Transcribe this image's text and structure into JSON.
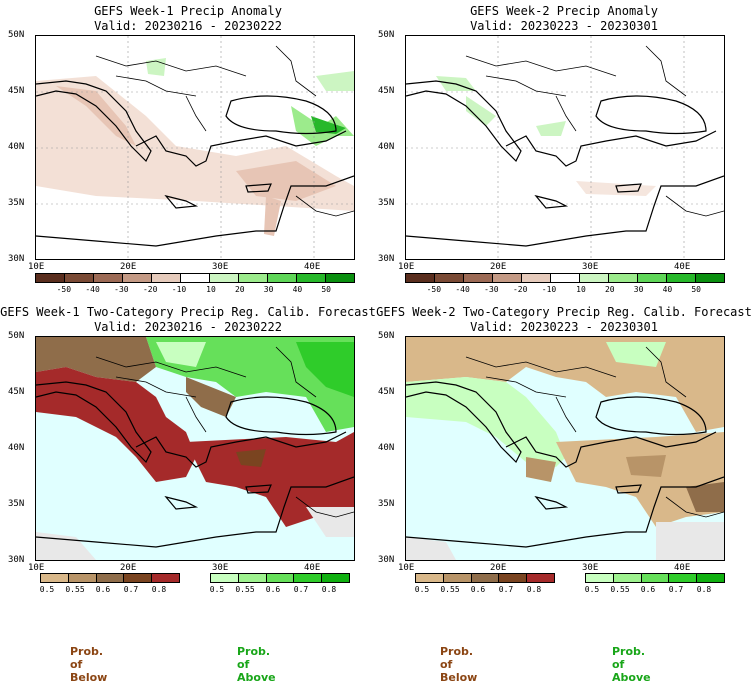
{
  "panels": [
    {
      "title_line1": "GEFS Week-1 Precip Anomaly",
      "title_line2": "Valid: 20230216 - 20230222"
    },
    {
      "title_line1": "GEFS Week-2 Precip Anomaly",
      "title_line2": "Valid: 20230223 - 20230301"
    },
    {
      "title_line1": "GEFS Week-1 Two-Category Precip Reg. Calib. Forecast",
      "title_line2": "Valid: 20230216 - 20230222"
    },
    {
      "title_line1": "GEFS Week-2 Two-Category Precip Reg. Calib. Forecast",
      "title_line2": "Valid: 20230223 - 20230301"
    }
  ],
  "lat_labels": [
    "50N",
    "45N",
    "40N",
    "35N",
    "30N"
  ],
  "lon_labels": [
    "10E",
    "20E",
    "30E",
    "40E"
  ],
  "anomaly_colorbar": {
    "ticks": [
      "-50",
      "-40",
      "-30",
      "-20",
      "-10",
      "10",
      "20",
      "30",
      "40",
      "50"
    ],
    "colors": [
      "#5a2e1e",
      "#7a4a35",
      "#9c6a55",
      "#c49a85",
      "#e6cbbc",
      "#ffffff",
      "#ccf5c2",
      "#9ceb8c",
      "#5fd658",
      "#27b82a",
      "#0a8f0f"
    ]
  },
  "prob_below_colorbar": {
    "ticks": [
      "0.5",
      "0.55",
      "0.6",
      "0.7",
      "0.8"
    ],
    "colors": [
      "#d9b88a",
      "#b89468",
      "#8f6d4a",
      "#7a4420",
      "#a52a2a"
    ]
  },
  "prob_above_colorbar": {
    "ticks": [
      "0.5",
      "0.55",
      "0.6",
      "0.7",
      "0.8"
    ],
    "colors": [
      "#c8ffc0",
      "#9ef28f",
      "#66e05a",
      "#2fcc2a",
      "#10b010"
    ]
  },
  "prob_labels": {
    "below": "Prob. of Below",
    "above": "Prob. of Above"
  },
  "colors": {
    "sea": "#e0ffff",
    "land_gray": "#e8e8e8",
    "below_text": "#8b4513",
    "above_text": "#19a619"
  }
}
